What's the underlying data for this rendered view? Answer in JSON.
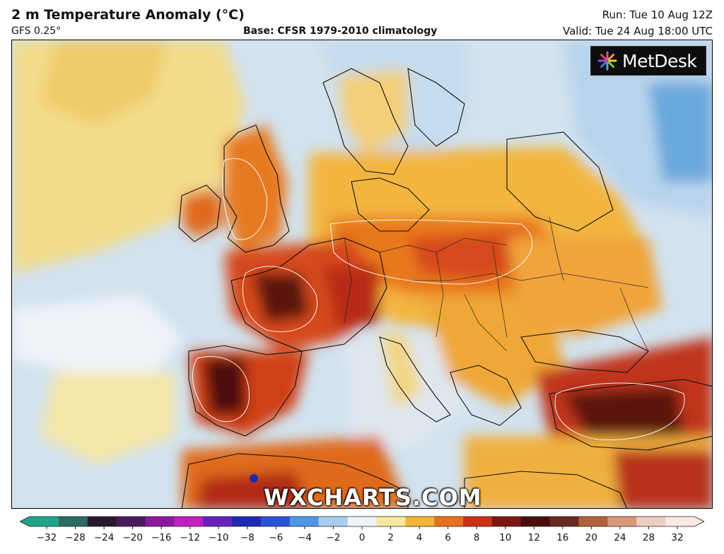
{
  "header": {
    "title": "2 m Temperature Anomaly (°C)",
    "model": "GFS 0.25°",
    "base": "Base: CFSR 1979-2010 climatology",
    "run": "Run: Tue 10 Aug 12Z",
    "valid": "Valid: Tue 24 Aug 18:00 UTC"
  },
  "logo": {
    "text": "MetDesk",
    "icon": "starburst-icon"
  },
  "watermark": "WXCHARTS.COM",
  "legend": {
    "ticks": [
      "−32",
      "−28",
      "−24",
      "−20",
      "−16",
      "−12",
      "−10",
      "−8",
      "−6",
      "−4",
      "−2",
      "0",
      "2",
      "4",
      "6",
      "8",
      "10",
      "12",
      "16",
      "20",
      "24",
      "28",
      "32"
    ],
    "colors": [
      "#1fa38a",
      "#2b6b60",
      "#2a1830",
      "#4a1a5e",
      "#8a1a9a",
      "#c020c0",
      "#6a20c0",
      "#1f2ab0",
      "#2b52d6",
      "#4f96e6",
      "#a8cdee",
      "#eef3f8",
      "#f7e7a0",
      "#f3b43a",
      "#e7701e",
      "#c9311a",
      "#7e1510",
      "#4a0e0c",
      "#6b2a20",
      "#b0603c",
      "#d9987a",
      "#f0ccc0",
      "#fae8e4"
    ]
  },
  "colors": {
    "ocean_cool": "#c7dced",
    "ocean_warm": "#f2d98a",
    "land_warm": "#f0b03a",
    "land_hot": "#e0661c",
    "land_very_hot": "#b82a12",
    "land_extreme": "#4a0e0c"
  }
}
